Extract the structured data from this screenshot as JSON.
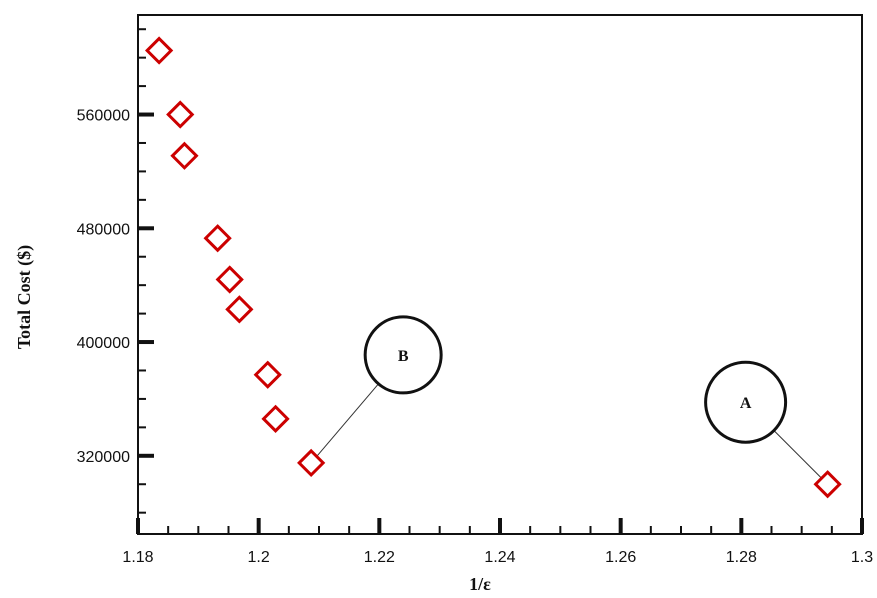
{
  "chart_data": {
    "type": "scatter",
    "xlabel": "1/ε",
    "ylabel": "Total Cost ($)",
    "xlim": [
      1.18,
      1.3
    ],
    "ylim": [
      265000,
      630000
    ],
    "x_ticks": [
      1.18,
      1.2,
      1.22,
      1.24,
      1.26,
      1.28,
      1.3
    ],
    "x_tick_labels": [
      "1.18",
      "1.2",
      "1.22",
      "1.24",
      "1.26",
      "1.28",
      "1.3"
    ],
    "y_ticks": [
      320000,
      400000,
      480000,
      560000
    ],
    "y_tick_labels": [
      "320000",
      "400000",
      "480000",
      "560000"
    ],
    "grid": false,
    "marker": "diamond",
    "marker_color": "#cc0000",
    "points": [
      {
        "x": 1.1835,
        "y": 605000
      },
      {
        "x": 1.187,
        "y": 560000
      },
      {
        "x": 1.1877,
        "y": 531000
      },
      {
        "x": 1.1932,
        "y": 473000
      },
      {
        "x": 1.1952,
        "y": 444000
      },
      {
        "x": 1.1968,
        "y": 423000
      },
      {
        "x": 1.2015,
        "y": 377000
      },
      {
        "x": 1.2028,
        "y": 346000
      },
      {
        "x": 1.2087,
        "y": 315000
      },
      {
        "x": 1.2943,
        "y": 300000
      }
    ],
    "annotations": [
      {
        "label": "B",
        "point_index": 8
      },
      {
        "label": "A",
        "point_index": 9
      }
    ]
  }
}
